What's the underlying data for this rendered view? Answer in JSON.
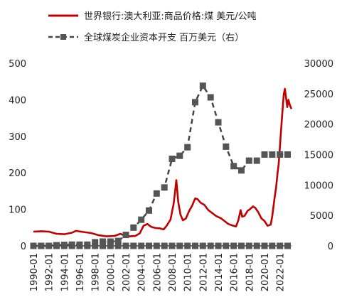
{
  "chart_data": {
    "type": "line",
    "title": "",
    "xlabel": "",
    "ylabel": "",
    "x_tick_labels": [
      "1990-01",
      "1992-01",
      "1994-01",
      "1996-01",
      "1998-01",
      "2000-01",
      "2002-01",
      "2004-01",
      "2006-01",
      "2008-01",
      "2010-01",
      "2012-01",
      "2014-01",
      "2016-01",
      "2018-01",
      "2020-01",
      "2022-01"
    ],
    "xlim": [
      1990.0,
      2023.6
    ],
    "left_axis": {
      "ylim": [
        0,
        500
      ],
      "ticks": [
        "0",
        "100",
        "200",
        "300",
        "400",
        "500"
      ]
    },
    "right_axis": {
      "ylim": [
        0,
        30000
      ],
      "ticks": [
        "0",
        "5000",
        "10000",
        "15000",
        "20000",
        "25000",
        "30000"
      ]
    },
    "legend_position": "top",
    "grid": false,
    "series": [
      {
        "name": "世界银行:澳大利亚:商品价格:煤 美元/公吨",
        "axis": "left",
        "style": "solid",
        "color": "#c00000",
        "points": [
          [
            1990.0,
            39
          ],
          [
            1991.0,
            40
          ],
          [
            1992.0,
            39
          ],
          [
            1993.0,
            33
          ],
          [
            1994.0,
            32
          ],
          [
            1995.0,
            36
          ],
          [
            1995.5,
            41
          ],
          [
            1996.5,
            38
          ],
          [
            1997.5,
            35
          ],
          [
            1998.5,
            29
          ],
          [
            1999.5,
            26
          ],
          [
            2000.5,
            27
          ],
          [
            2001.3,
            33
          ],
          [
            2001.8,
            28
          ],
          [
            2002.5,
            26
          ],
          [
            2003.2,
            27
          ],
          [
            2003.8,
            34
          ],
          [
            2004.3,
            55
          ],
          [
            2004.8,
            60
          ],
          [
            2005.3,
            52
          ],
          [
            2005.8,
            49
          ],
          [
            2006.4,
            48
          ],
          [
            2006.9,
            45
          ],
          [
            2007.3,
            55
          ],
          [
            2007.8,
            72
          ],
          [
            2008.2,
            115
          ],
          [
            2008.4,
            150
          ],
          [
            2008.55,
            180
          ],
          [
            2008.8,
            120
          ],
          [
            2009.1,
            85
          ],
          [
            2009.4,
            70
          ],
          [
            2009.8,
            75
          ],
          [
            2010.2,
            95
          ],
          [
            2010.6,
            110
          ],
          [
            2011.0,
            130
          ],
          [
            2011.3,
            128
          ],
          [
            2011.7,
            118
          ],
          [
            2012.2,
            112
          ],
          [
            2012.7,
            98
          ],
          [
            2013.2,
            90
          ],
          [
            2013.7,
            82
          ],
          [
            2014.3,
            76
          ],
          [
            2014.8,
            68
          ],
          [
            2015.3,
            60
          ],
          [
            2015.8,
            56
          ],
          [
            2016.3,
            53
          ],
          [
            2016.6,
            70
          ],
          [
            2016.9,
            98
          ],
          [
            2017.1,
            80
          ],
          [
            2017.4,
            82
          ],
          [
            2017.8,
            96
          ],
          [
            2018.1,
            100
          ],
          [
            2018.5,
            108
          ],
          [
            2018.8,
            104
          ],
          [
            2019.2,
            92
          ],
          [
            2019.6,
            75
          ],
          [
            2020.0,
            68
          ],
          [
            2020.4,
            55
          ],
          [
            2020.8,
            58
          ],
          [
            2021.0,
            80
          ],
          [
            2021.3,
            130
          ],
          [
            2021.5,
            160
          ],
          [
            2021.7,
            200
          ],
          [
            2021.85,
            225
          ],
          [
            2022.1,
            300
          ],
          [
            2022.3,
            360
          ],
          [
            2022.5,
            415
          ],
          [
            2022.65,
            430
          ],
          [
            2022.8,
            405
          ],
          [
            2022.95,
            380
          ],
          [
            2023.1,
            400
          ],
          [
            2023.3,
            385
          ],
          [
            2023.5,
            375
          ]
        ]
      },
      {
        "name": "全球煤炭企业资本开支 百万美元（右）",
        "axis": "right",
        "style": "dashed",
        "color": "#444444",
        "marker": "square",
        "points": [
          [
            1990.0,
            0
          ],
          [
            1991.0,
            0
          ],
          [
            1992.0,
            0
          ],
          [
            1993.0,
            100
          ],
          [
            1994.0,
            150
          ],
          [
            1995.0,
            200
          ],
          [
            1996.0,
            200
          ],
          [
            1997.0,
            200
          ],
          [
            1998.0,
            600
          ],
          [
            1999.0,
            700
          ],
          [
            2000.0,
            700
          ],
          [
            2001.0,
            800
          ],
          [
            2002.0,
            1800
          ],
          [
            2003.0,
            3000
          ],
          [
            2004.0,
            4300
          ],
          [
            2005.0,
            5800
          ],
          [
            2006.0,
            8600
          ],
          [
            2007.0,
            9600
          ],
          [
            2008.0,
            14300
          ],
          [
            2009.0,
            14800
          ],
          [
            2010.0,
            16200
          ],
          [
            2011.0,
            23600
          ],
          [
            2012.0,
            26300
          ],
          [
            2013.0,
            24400
          ],
          [
            2014.0,
            20300
          ],
          [
            2015.0,
            16300
          ],
          [
            2016.0,
            13100
          ],
          [
            2017.0,
            12400
          ],
          [
            2018.0,
            14000
          ],
          [
            2019.0,
            14000
          ],
          [
            2020.0,
            15000
          ],
          [
            2021.0,
            15000
          ],
          [
            2022.0,
            15000
          ],
          [
            2023.0,
            15000
          ]
        ]
      },
      {
        "name": "",
        "axis": "right",
        "style": "solid",
        "color": "#444444",
        "marker": "square",
        "points": [
          [
            1990.0,
            0
          ],
          [
            1991.0,
            0
          ],
          [
            1992.0,
            0
          ],
          [
            1993.0,
            0
          ],
          [
            1994.0,
            0
          ],
          [
            1995.0,
            0
          ],
          [
            1996.0,
            0
          ],
          [
            1997.0,
            0
          ],
          [
            1998.0,
            0
          ],
          [
            1999.0,
            0
          ],
          [
            2000.0,
            0
          ],
          [
            2001.0,
            0
          ],
          [
            2002.0,
            0
          ],
          [
            2003.0,
            0
          ],
          [
            2004.0,
            0
          ],
          [
            2005.0,
            0
          ],
          [
            2006.0,
            0
          ],
          [
            2007.0,
            0
          ],
          [
            2008.0,
            0
          ],
          [
            2009.0,
            0
          ],
          [
            2010.0,
            0
          ],
          [
            2011.0,
            0
          ],
          [
            2012.0,
            0
          ],
          [
            2013.0,
            0
          ],
          [
            2014.0,
            0
          ],
          [
            2015.0,
            0
          ],
          [
            2016.0,
            0
          ],
          [
            2017.0,
            0
          ],
          [
            2018.0,
            0
          ],
          [
            2019.0,
            0
          ],
          [
            2020.0,
            0
          ],
          [
            2021.0,
            0
          ],
          [
            2022.0,
            0
          ],
          [
            2023.0,
            0
          ]
        ]
      }
    ],
    "legend": [
      {
        "label": "世界银行:澳大利亚:商品价格:煤 美元/公吨",
        "style": "solid",
        "color": "#c00000"
      },
      {
        "label": "全球煤炭企业资本开支 百万美元（右）",
        "style": "dashed",
        "color": "#444444",
        "marker": "square"
      }
    ]
  }
}
